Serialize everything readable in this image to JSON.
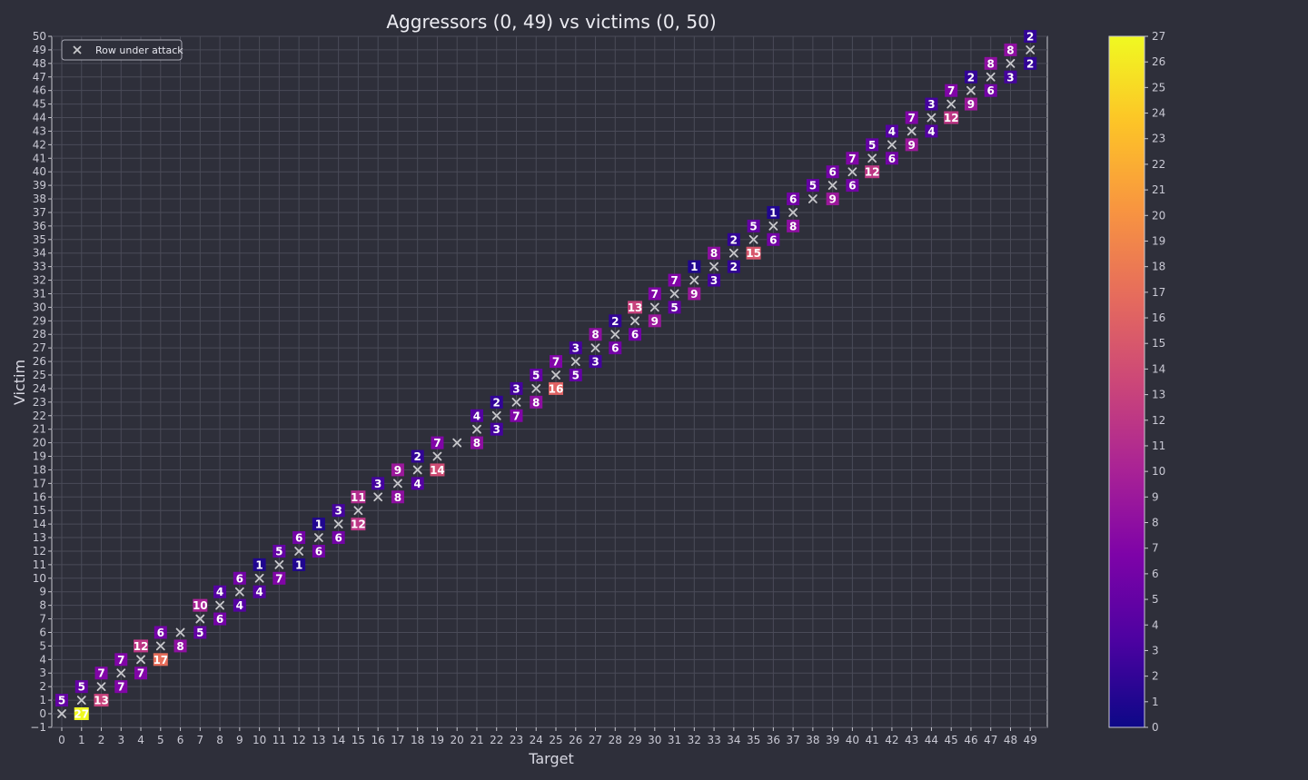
{
  "chart_data": {
    "type": "scatter",
    "title": "Aggressors (0, 49) vs victims (0, 50)",
    "xlabel": "Target",
    "ylabel": "Victim",
    "xlim": [
      -0.5,
      49.6
    ],
    "ylim": [
      -1,
      50.6
    ],
    "x_ticks": [
      0,
      1,
      2,
      3,
      4,
      5,
      6,
      7,
      8,
      9,
      10,
      11,
      12,
      13,
      14,
      15,
      16,
      17,
      18,
      19,
      20,
      21,
      22,
      23,
      24,
      25,
      26,
      27,
      28,
      29,
      30,
      31,
      32,
      33,
      34,
      35,
      36,
      37,
      38,
      39,
      40,
      41,
      42,
      43,
      44,
      45,
      46,
      47,
      48,
      49
    ],
    "y_ticks": [
      -1,
      0,
      1,
      2,
      3,
      4,
      5,
      6,
      7,
      8,
      9,
      10,
      11,
      12,
      13,
      14,
      15,
      16,
      17,
      18,
      19,
      20,
      21,
      22,
      23,
      24,
      25,
      26,
      27,
      28,
      29,
      30,
      31,
      32,
      33,
      34,
      35,
      36,
      37,
      38,
      39,
      40,
      41,
      42,
      43,
      44,
      45,
      46,
      47,
      48,
      49,
      50
    ],
    "grid": true,
    "legend": {
      "position": "top-left",
      "label": "Row under attack",
      "marker": "x"
    },
    "colormap": "plasma",
    "colorbar": {
      "min": 0,
      "max": 27,
      "ticks": [
        0,
        1,
        2,
        3,
        4,
        5,
        6,
        7,
        8,
        9,
        10,
        11,
        12,
        13,
        14,
        15,
        16,
        17,
        18,
        19,
        20,
        21,
        22,
        23,
        24,
        25,
        26,
        27
      ]
    },
    "attacked_rows": [
      {
        "x": 0,
        "y": 0
      },
      {
        "x": 1,
        "y": 1
      },
      {
        "x": 2,
        "y": 2
      },
      {
        "x": 3,
        "y": 3
      },
      {
        "x": 4,
        "y": 4
      },
      {
        "x": 5,
        "y": 5
      },
      {
        "x": 6,
        "y": 6
      },
      {
        "x": 7,
        "y": 7
      },
      {
        "x": 8,
        "y": 8
      },
      {
        "x": 9,
        "y": 9
      },
      {
        "x": 10,
        "y": 10
      },
      {
        "x": 11,
        "y": 11
      },
      {
        "x": 12,
        "y": 12
      },
      {
        "x": 13,
        "y": 13
      },
      {
        "x": 14,
        "y": 14
      },
      {
        "x": 15,
        "y": 15
      },
      {
        "x": 16,
        "y": 16
      },
      {
        "x": 17,
        "y": 17
      },
      {
        "x": 18,
        "y": 18
      },
      {
        "x": 19,
        "y": 19
      },
      {
        "x": 20,
        "y": 20
      },
      {
        "x": 21,
        "y": 21
      },
      {
        "x": 22,
        "y": 22
      },
      {
        "x": 23,
        "y": 23
      },
      {
        "x": 24,
        "y": 24
      },
      {
        "x": 25,
        "y": 25
      },
      {
        "x": 26,
        "y": 26
      },
      {
        "x": 27,
        "y": 27
      },
      {
        "x": 28,
        "y": 28
      },
      {
        "x": 29,
        "y": 29
      },
      {
        "x": 30,
        "y": 30
      },
      {
        "x": 31,
        "y": 31
      },
      {
        "x": 32,
        "y": 32
      },
      {
        "x": 33,
        "y": 33
      },
      {
        "x": 34,
        "y": 34
      },
      {
        "x": 35,
        "y": 35
      },
      {
        "x": 36,
        "y": 36
      },
      {
        "x": 37,
        "y": 37
      },
      {
        "x": 38,
        "y": 38
      },
      {
        "x": 39,
        "y": 39
      },
      {
        "x": 40,
        "y": 40
      },
      {
        "x": 41,
        "y": 41
      },
      {
        "x": 42,
        "y": 42
      },
      {
        "x": 43,
        "y": 43
      },
      {
        "x": 44,
        "y": 44
      },
      {
        "x": 45,
        "y": 45
      },
      {
        "x": 46,
        "y": 46
      },
      {
        "x": 47,
        "y": 47
      },
      {
        "x": 48,
        "y": 48
      },
      {
        "x": 49,
        "y": 49
      }
    ],
    "points": [
      {
        "x": 0,
        "y": 1,
        "v": 5
      },
      {
        "x": 1,
        "y": 2,
        "v": 5
      },
      {
        "x": 1,
        "y": 0,
        "v": 27
      },
      {
        "x": 2,
        "y": 3,
        "v": 7
      },
      {
        "x": 2,
        "y": 1,
        "v": 13
      },
      {
        "x": 3,
        "y": 4,
        "v": 7
      },
      {
        "x": 3,
        "y": 2,
        "v": 7
      },
      {
        "x": 4,
        "y": 5,
        "v": 12
      },
      {
        "x": 4,
        "y": 3,
        "v": 7
      },
      {
        "x": 5,
        "y": 6,
        "v": 6
      },
      {
        "x": 5,
        "y": 4,
        "v": 17
      },
      {
        "x": 6,
        "y": 5,
        "v": 8
      },
      {
        "x": 7,
        "y": 8,
        "v": 10
      },
      {
        "x": 7,
        "y": 6,
        "v": 5
      },
      {
        "x": 8,
        "y": 9,
        "v": 4
      },
      {
        "x": 8,
        "y": 7,
        "v": 6
      },
      {
        "x": 9,
        "y": 10,
        "v": 6
      },
      {
        "x": 9,
        "y": 8,
        "v": 4
      },
      {
        "x": 10,
        "y": 11,
        "v": 1
      },
      {
        "x": 10,
        "y": 9,
        "v": 4
      },
      {
        "x": 11,
        "y": 12,
        "v": 5
      },
      {
        "x": 11,
        "y": 10,
        "v": 7
      },
      {
        "x": 12,
        "y": 13,
        "v": 6
      },
      {
        "x": 12,
        "y": 11,
        "v": 1
      },
      {
        "x": 13,
        "y": 14,
        "v": 1
      },
      {
        "x": 13,
        "y": 12,
        "v": 6
      },
      {
        "x": 14,
        "y": 15,
        "v": 3
      },
      {
        "x": 14,
        "y": 13,
        "v": 6
      },
      {
        "x": 15,
        "y": 16,
        "v": 11
      },
      {
        "x": 15,
        "y": 14,
        "v": 12
      },
      {
        "x": 16,
        "y": 17,
        "v": 3
      },
      {
        "x": 17,
        "y": 18,
        "v": 9
      },
      {
        "x": 17,
        "y": 16,
        "v": 8
      },
      {
        "x": 18,
        "y": 19,
        "v": 2
      },
      {
        "x": 18,
        "y": 17,
        "v": 4
      },
      {
        "x": 19,
        "y": 20,
        "v": 7
      },
      {
        "x": 19,
        "y": 18,
        "v": 14
      },
      {
        "x": 21,
        "y": 22,
        "v": 4
      },
      {
        "x": 21,
        "y": 20,
        "v": 8
      },
      {
        "x": 22,
        "y": 23,
        "v": 2
      },
      {
        "x": 22,
        "y": 21,
        "v": 3
      },
      {
        "x": 23,
        "y": 24,
        "v": 3
      },
      {
        "x": 23,
        "y": 22,
        "v": 7
      },
      {
        "x": 24,
        "y": 25,
        "v": 5
      },
      {
        "x": 24,
        "y": 23,
        "v": 8
      },
      {
        "x": 25,
        "y": 26,
        "v": 7
      },
      {
        "x": 25,
        "y": 24,
        "v": 16
      },
      {
        "x": 26,
        "y": 27,
        "v": 3
      },
      {
        "x": 26,
        "y": 25,
        "v": 5
      },
      {
        "x": 27,
        "y": 28,
        "v": 8
      },
      {
        "x": 27,
        "y": 26,
        "v": 3
      },
      {
        "x": 28,
        "y": 29,
        "v": 2
      },
      {
        "x": 28,
        "y": 27,
        "v": 6
      },
      {
        "x": 29,
        "y": 30,
        "v": 13
      },
      {
        "x": 29,
        "y": 28,
        "v": 6
      },
      {
        "x": 30,
        "y": 31,
        "v": 7
      },
      {
        "x": 30,
        "y": 29,
        "v": 9
      },
      {
        "x": 31,
        "y": 32,
        "v": 7
      },
      {
        "x": 31,
        "y": 30,
        "v": 5
      },
      {
        "x": 32,
        "y": 33,
        "v": 1
      },
      {
        "x": 32,
        "y": 31,
        "v": 9
      },
      {
        "x": 33,
        "y": 34,
        "v": 8
      },
      {
        "x": 33,
        "y": 32,
        "v": 3
      },
      {
        "x": 34,
        "y": 35,
        "v": 2
      },
      {
        "x": 34,
        "y": 33,
        "v": 2
      },
      {
        "x": 35,
        "y": 36,
        "v": 5
      },
      {
        "x": 35,
        "y": 34,
        "v": 15
      },
      {
        "x": 36,
        "y": 37,
        "v": 1
      },
      {
        "x": 36,
        "y": 35,
        "v": 6
      },
      {
        "x": 37,
        "y": 38,
        "v": 6
      },
      {
        "x": 37,
        "y": 36,
        "v": 8
      },
      {
        "x": 38,
        "y": 39,
        "v": 5
      },
      {
        "x": 39,
        "y": 40,
        "v": 6
      },
      {
        "x": 39,
        "y": 38,
        "v": 9
      },
      {
        "x": 40,
        "y": 41,
        "v": 7
      },
      {
        "x": 40,
        "y": 39,
        "v": 6
      },
      {
        "x": 41,
        "y": 42,
        "v": 5
      },
      {
        "x": 41,
        "y": 40,
        "v": 12
      },
      {
        "x": 42,
        "y": 43,
        "v": 4
      },
      {
        "x": 42,
        "y": 41,
        "v": 6
      },
      {
        "x": 43,
        "y": 44,
        "v": 7
      },
      {
        "x": 43,
        "y": 42,
        "v": 9
      },
      {
        "x": 44,
        "y": 45,
        "v": 3
      },
      {
        "x": 44,
        "y": 43,
        "v": 4
      },
      {
        "x": 45,
        "y": 46,
        "v": 7
      },
      {
        "x": 45,
        "y": 44,
        "v": 12
      },
      {
        "x": 46,
        "y": 47,
        "v": 2
      },
      {
        "x": 46,
        "y": 45,
        "v": 9
      },
      {
        "x": 47,
        "y": 48,
        "v": 8
      },
      {
        "x": 47,
        "y": 46,
        "v": 6
      },
      {
        "x": 48,
        "y": 49,
        "v": 8
      },
      {
        "x": 48,
        "y": 47,
        "v": 3
      },
      {
        "x": 49,
        "y": 50,
        "v": 2
      },
      {
        "x": 49,
        "y": 48,
        "v": 2
      }
    ]
  }
}
